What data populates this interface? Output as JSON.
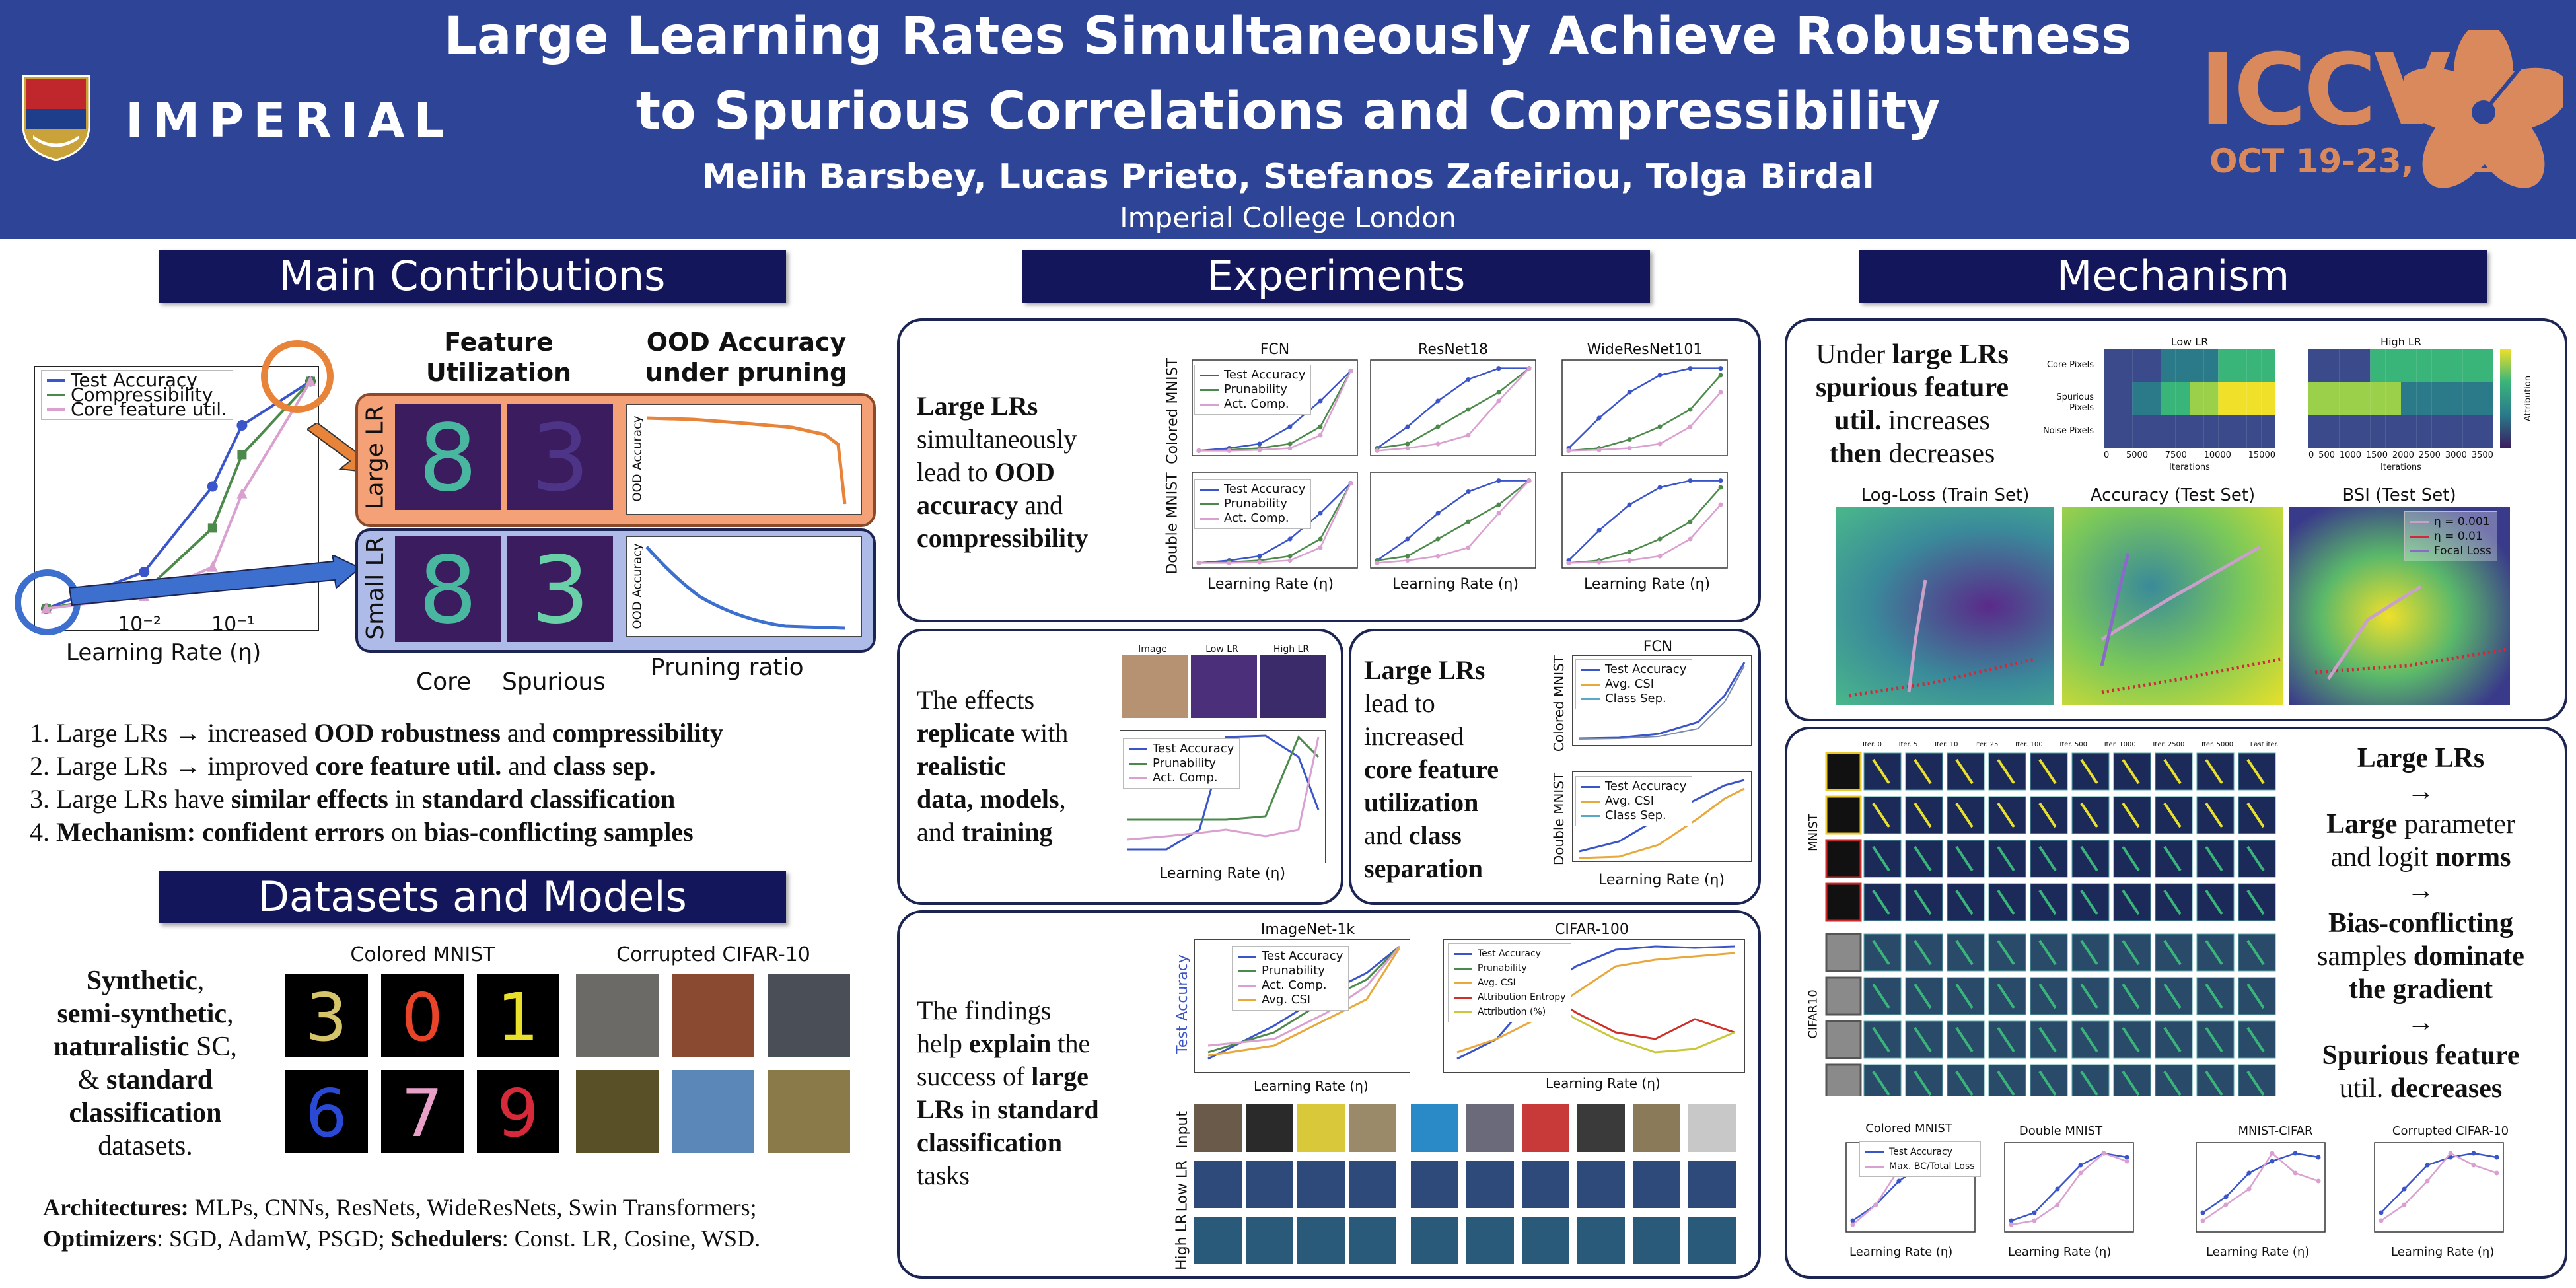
{
  "header": {
    "title_line1": "Large Learning Rates Simultaneously Achieve Robustness",
    "title_line2": "to Spurious Correlations and Compressibility",
    "authors": "Melih Barsbey, Lucas Prieto, Stefanos Zafeiriou, Tolga Birdal",
    "affiliation": "Imperial College London",
    "institution_logo_text": "IMPERIAL",
    "conference": "ICCV",
    "conference_dates": "OCT 19-23, 2025"
  },
  "sections": {
    "main_contributions": "Main Contributions",
    "datasets_models": "Datasets and Models",
    "experiments": "Experiments",
    "mechanism": "Mechanism"
  },
  "contrib_fig": {
    "legend": [
      "Test Accuracy",
      "Compressibility",
      "Core feature util."
    ],
    "xlabel": "Learning Rate (η)",
    "xticks": [
      "10⁻²",
      "10⁻¹"
    ],
    "col_feature": "Feature Utilization",
    "col_ood": "OOD Accuracy under pruning",
    "row_large": "Large LR",
    "row_small": "Small LR",
    "ood_ylabel": "OOD Accuracy",
    "core": "Core",
    "spurious": "Spurious",
    "pruning_ratio": "Pruning ratio"
  },
  "contributions": [
    {
      "num": "1.",
      "pre": "Large LRs → increased ",
      "b1": "OOD robustness",
      "mid": " and ",
      "b2": "compressibility"
    },
    {
      "num": "2.",
      "pre": "Large LRs → improved ",
      "b1": "core feature util.",
      "mid": " and ",
      "b2": "class sep."
    },
    {
      "num": "3.",
      "pre": "Large LRs have ",
      "b1": "similar effects",
      "mid": " in ",
      "b2": "standard classification"
    },
    {
      "num": "4.",
      "pre": "",
      "b1": "Mechanism: confident errors",
      "mid": " on ",
      "b2": "bias-conflicting samples"
    }
  ],
  "datasets": {
    "text": {
      "b1": "Synthetic",
      "t1": ",",
      "b2": "semi-synthetic",
      "t2": ",",
      "b3": "naturalistic",
      "t3": " SC,",
      "t4": "& ",
      "b4": "standard",
      "b5": "classification",
      "t5": "datasets."
    },
    "cmnist_title": "Colored MNIST",
    "cifar_title": "Corrupted CIFAR-10",
    "arch_label": "Architectures:",
    "arch_text": " MLPs, CNNs, ResNets, WideResNets, Swin Transformers;",
    "opt_label": "Optimizers",
    "opt_text": ": SGD, AdamW, PSGD; ",
    "sched_label": "Schedulers",
    "sched_text": ": Const. LR, Cosine, WSD."
  },
  "exp1": {
    "text": {
      "b1": "Large LRs",
      "t1": "simultaneously",
      "t2": "lead to ",
      "b2": "OOD",
      "b3": "accuracy",
      "t3": " and",
      "b4": "compressibility"
    },
    "cols": [
      "FCN",
      "ResNet18",
      "WideResNet101"
    ],
    "rows": [
      "Colored MNIST",
      "Double MNIST"
    ],
    "legend": [
      "Test Accuracy",
      "Prunability",
      "Act. Comp."
    ],
    "xlabel": "Learning Rate (η)"
  },
  "exp2": {
    "text": {
      "t1": "The effects",
      "b1": "replicate",
      "t2": " with",
      "b2": "realistic",
      "b3": "data, models",
      "t3": ",",
      "t4": "and ",
      "b4": "training"
    },
    "img_labels": [
      "Image",
      "Low LR",
      "High LR"
    ],
    "legend": [
      "Test Accuracy",
      "Prunability",
      "Act. Comp."
    ],
    "xlabel": "Learning Rate (η)"
  },
  "exp3": {
    "text": {
      "b1": "Large LRs",
      "t1": "lead to",
      "t2": "increased",
      "b2": "core feature",
      "b3": "utilization",
      "t3": "and ",
      "b4": "class",
      "b5": "separation"
    },
    "title": "FCN",
    "rows": [
      "Colored MNIST",
      "Double MNIST"
    ],
    "legend1": [
      "Test Accuracy",
      "Avg. CSI",
      "Class Sep."
    ],
    "legend2": [
      "Test Accuracy",
      "Avg. CSI",
      "Class Sep."
    ],
    "xlabel": "Learning Rate (η)"
  },
  "exp4": {
    "text": {
      "t1": "The findings",
      "t2": "help ",
      "b1": "explain",
      "t3": " the",
      "t4": "success of ",
      "b2": "large",
      "b3": "LRs",
      "t5": " in ",
      "b4": "standard",
      "b5": "classification",
      "t6": "tasks"
    },
    "chart1_title": "ImageNet-1k",
    "chart2_title": "CIFAR-100",
    "legend1": [
      "Test Accuracy",
      "Prunability",
      "Act. Comp.",
      "Avg. CSI"
    ],
    "legend2": [
      "Test Accuracy",
      "Prunability",
      "Avg. CSI",
      "Attribution Entropy",
      "Attribution (%)"
    ],
    "ylabel": "Test Accuracy",
    "xlabel": "Learning Rate (η)",
    "row_labels": [
      "Input",
      "Low LR",
      "High LR"
    ]
  },
  "mech1": {
    "text": {
      "t1": "Under ",
      "b1": "large LRs",
      "b2": "spurious feature",
      "b3": "util.",
      "t2": " increases",
      "b4": "then",
      "t3": " decreases"
    },
    "heat_titles": [
      "Low LR",
      "High LR"
    ],
    "heat_rows": [
      "Core Pixels",
      "Spurious Pixels",
      "Noise Pixels"
    ],
    "heat_x_low": [
      "0",
      "5000",
      "7500",
      "10000",
      "15000"
    ],
    "heat_x_high": [
      "0",
      "500",
      "1000",
      "1500",
      "2000",
      "2500",
      "3000",
      "3500"
    ],
    "heat_xlabel": "Iterations",
    "cbar_label": "Attribution",
    "land_titles": [
      "Log-Loss (Train Set)",
      "Accuracy (Test Set)",
      "BSI (Test Set)"
    ],
    "land_legend": [
      "η = 0.001",
      "η = 0.01",
      "Focal Loss"
    ]
  },
  "mech2": {
    "cols": [
      "Iter. 0",
      "Iter. 5",
      "Iter. 10",
      "Iter. 25",
      "Iter. 100",
      "Iter. 500",
      "Iter. 1000",
      "Iter. 2500",
      "Iter. 5000",
      "Last iter."
    ],
    "groups": [
      "MNIST",
      "CIFAR10"
    ],
    "steps": [
      {
        "b": "Large LRs",
        "t": ""
      },
      {
        "b": "Large",
        "t": " parameter"
      },
      {
        "t": "and logit ",
        "b": "norms"
      },
      {
        "b": "Bias-conflicting",
        "t": ""
      },
      {
        "t": "samples ",
        "b": "dominate"
      },
      {
        "b": "the gradient",
        "t": ""
      },
      {
        "b": "Spurious feature",
        "t": ""
      },
      {
        "t": "util. ",
        "b": "decreases"
      }
    ],
    "arrow": "→"
  },
  "mech3": {
    "titles": [
      "Colored MNIST",
      "Double MNIST",
      "MNIST-CIFAR",
      "Corrupted CIFAR-10"
    ],
    "legend": [
      "Test Accuracy",
      "Max. BC/Total Loss"
    ],
    "xlabel": "Learning Rate (η)"
  },
  "colors": {
    "header_bg": "#2e4496",
    "banner_bg": "#13165a",
    "blue": "#3a54c9",
    "green": "#4c8a4c",
    "pink": "#d9a0d0",
    "orange": "#e8843a",
    "accent_gold": "#d9895c"
  },
  "chart_data": [
    {
      "type": "line",
      "title": "",
      "xlabel": "Learning Rate (η)",
      "series": [
        {
          "name": "Test Accuracy",
          "values": [
            0.05,
            0.2,
            0.55,
            0.8,
            0.98
          ]
        },
        {
          "name": "Compressibility",
          "values": [
            0.05,
            0.12,
            0.38,
            0.68,
            0.98
          ]
        },
        {
          "name": "Core feature util.",
          "values": [
            0.05,
            0.1,
            0.22,
            0.52,
            0.98
          ]
        }
      ],
      "x": [
        0.001,
        0.01,
        0.05,
        0.1,
        0.5
      ]
    }
  ]
}
